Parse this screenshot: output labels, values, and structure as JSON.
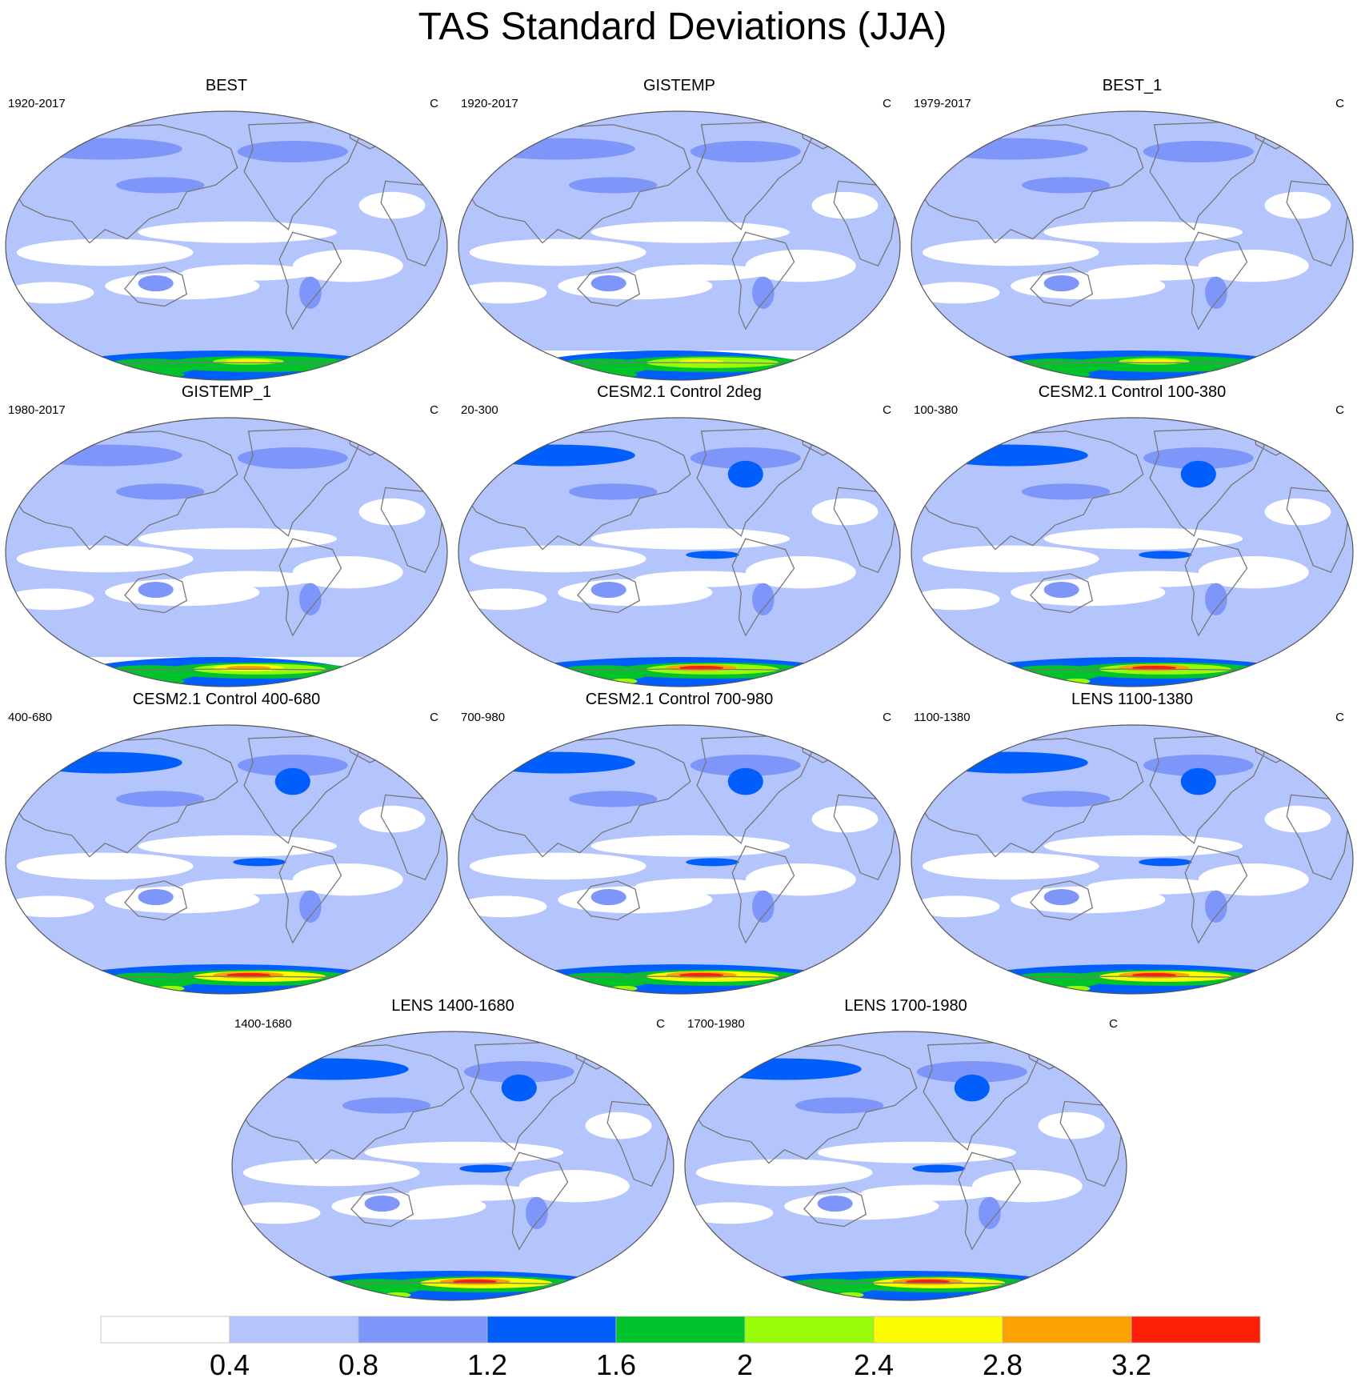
{
  "title": "TAS Standard Deviations (JJA)",
  "colors": {
    "levels": [
      "#ffffff",
      "#b4c4fc",
      "#7e96fa",
      "#005efc",
      "#00c22a",
      "#99fc08",
      "#fcfc00",
      "#fca200",
      "#fc1e06"
    ],
    "coast": "#777777",
    "frame": "#555555"
  },
  "colorbar": {
    "tick_labels": [
      "0.4",
      "0.8",
      "1.2",
      "1.6",
      "2",
      "2.4",
      "2.8",
      "3.2"
    ]
  },
  "panels": [
    {
      "name": "BEST",
      "period": "1920-2017",
      "units": "C",
      "kind": "obs",
      "ant": 1.9,
      "ant_cap": 2.6,
      "tropic": 0.5,
      "nh": 1.1,
      "ant_gap": false
    },
    {
      "name": "GISTEMP",
      "period": "1920-2017",
      "units": "C",
      "kind": "obs",
      "ant": 2.1,
      "ant_cap": 2.6,
      "tropic": 0.5,
      "nh": 1.0,
      "ant_gap": true
    },
    {
      "name": "BEST_1",
      "period": "1979-2017",
      "units": "C",
      "kind": "obs",
      "ant": 1.9,
      "ant_cap": 2.6,
      "tropic": 0.5,
      "nh": 1.1,
      "ant_gap": false
    },
    {
      "name": "GISTEMP_1",
      "period": "1980-2017",
      "units": "C",
      "kind": "obs",
      "ant": 2.0,
      "ant_cap": 3.0,
      "tropic": 0.4,
      "nh": 1.0,
      "ant_gap": true
    },
    {
      "name": "CESM2.1 Control 2deg",
      "period": "20-300",
      "units": "C",
      "kind": "model",
      "ant": 2.4,
      "ant_cap": 3.3,
      "tropic": 0.6,
      "nh": 1.4,
      "ant_gap": false
    },
    {
      "name": "CESM2.1 Control 100-380",
      "period": "100-380",
      "units": "C",
      "kind": "model",
      "ant": 2.4,
      "ant_cap": 3.3,
      "tropic": 0.6,
      "nh": 1.4,
      "ant_gap": false
    },
    {
      "name": "CESM2.1 Control 400-680",
      "period": "400-680",
      "units": "C",
      "kind": "model",
      "ant": 2.5,
      "ant_cap": 3.4,
      "tropic": 0.6,
      "nh": 1.4,
      "ant_gap": false
    },
    {
      "name": "CESM2.1 Control 700-980",
      "period": "700-980",
      "units": "C",
      "kind": "model",
      "ant": 2.5,
      "ant_cap": 3.4,
      "tropic": 0.6,
      "nh": 1.4,
      "ant_gap": false
    },
    {
      "name": "LENS 1100-1380",
      "period": "1100-1380",
      "units": "C",
      "kind": "model",
      "ant": 2.6,
      "ant_cap": 3.4,
      "tropic": 0.6,
      "nh": 1.3,
      "ant_gap": false
    },
    {
      "name": "LENS 1400-1680",
      "period": "1400-1680",
      "units": "C",
      "kind": "model",
      "ant": 2.6,
      "ant_cap": 3.4,
      "tropic": 0.6,
      "nh": 1.3,
      "ant_gap": false
    },
    {
      "name": "LENS 1700-1980",
      "period": "1700-1980",
      "units": "C",
      "kind": "model",
      "ant": 2.6,
      "ant_cap": 3.4,
      "tropic": 0.6,
      "nh": 1.3,
      "ant_gap": false
    }
  ]
}
